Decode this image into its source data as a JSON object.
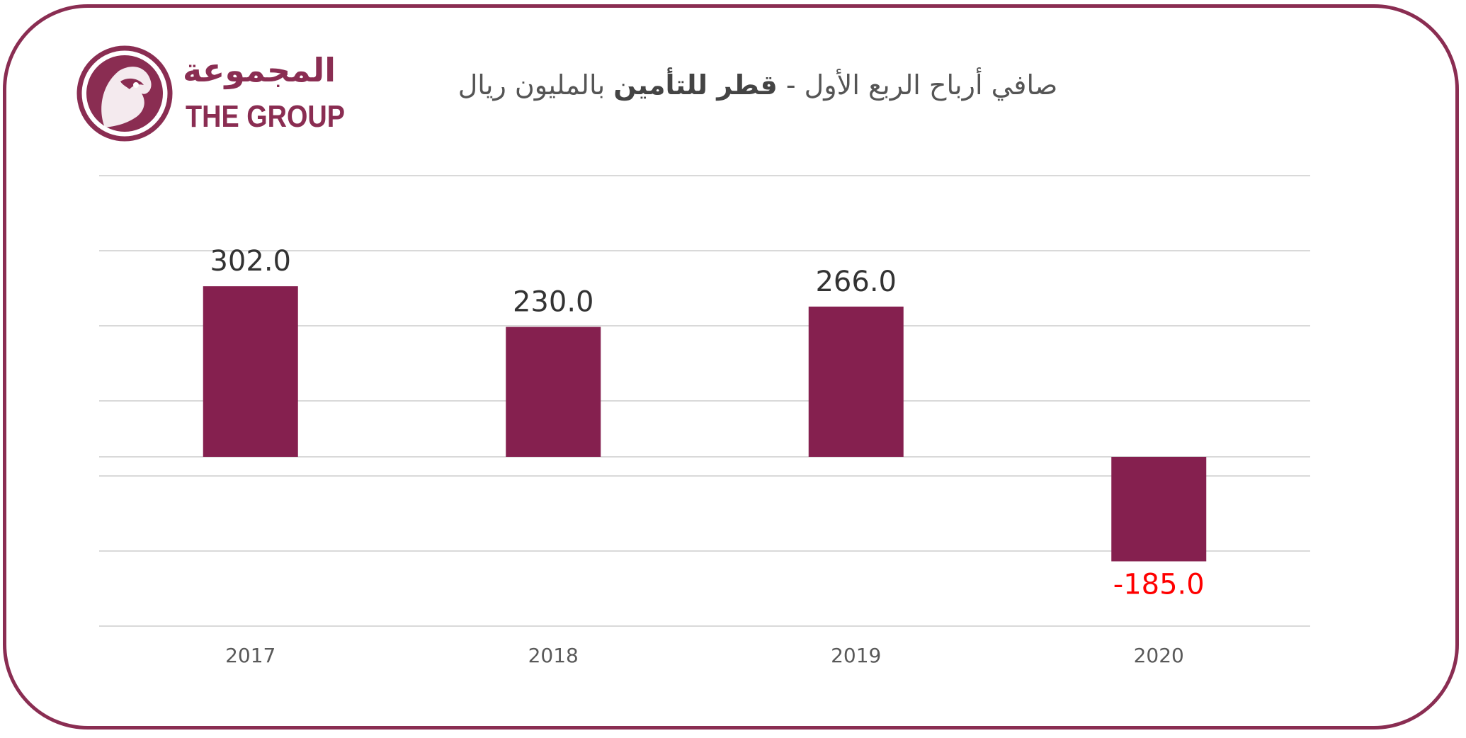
{
  "logo": {
    "text_ar": "المجموعة",
    "text_en": "THE GROUP",
    "icon": "falcon-emblem-icon"
  },
  "title": {
    "part1": "صافي أرباح الربع الأول - ",
    "part_bold": "قطر للتأمين",
    "part2": " بالمليون ريال"
  },
  "colors": {
    "bar": "#85204f",
    "frame": "#8a2d52",
    "negative_label": "#ff0000",
    "label": "#333333",
    "grid": "#d9d9d9"
  },
  "chart_data": {
    "type": "bar",
    "categories": [
      "2017",
      "2018",
      "2019",
      "2020"
    ],
    "values": [
      302.0,
      230.0,
      266.0,
      -185.0
    ],
    "data_labels": [
      "302.0",
      "230.0",
      "266.0",
      "-185.0"
    ],
    "title": "صافي أرباح الربع الأول - قطر للتأمين بالمليون ريال",
    "xlabel": "",
    "ylabel": "",
    "ylim": [
      -225,
      375
    ],
    "grid": true,
    "legend": "none"
  }
}
